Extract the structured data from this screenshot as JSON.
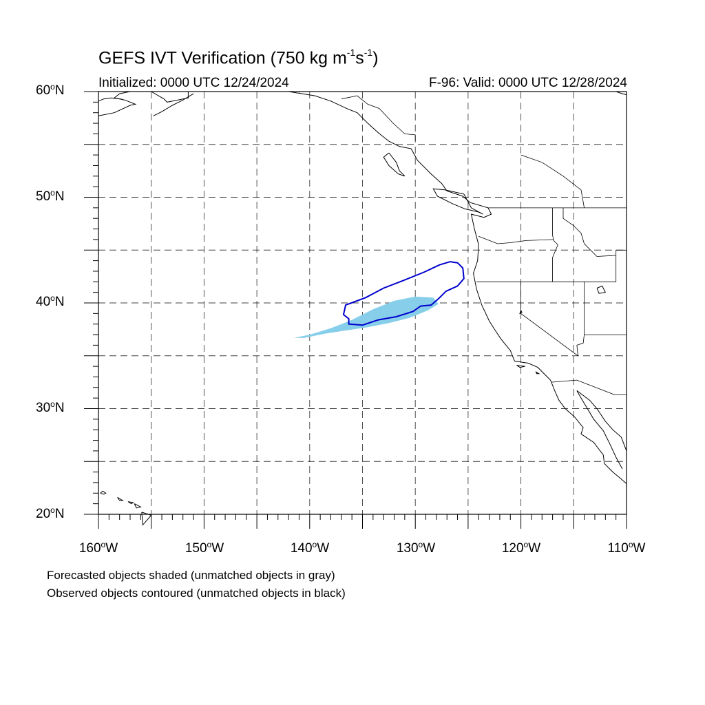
{
  "title": {
    "prefix": "GEFS IVT Verification (750 kg m",
    "exp1": "-1",
    "mid": "s",
    "exp2": "-1",
    "suffix": ")"
  },
  "initialized": "Initialized: 0000 UTC 12/24/2024",
  "valid": "F-96: Valid: 0000 UTC 12/28/2024",
  "lat_labels": [
    {
      "deg": "60",
      "hemi": "N"
    },
    {
      "deg": "50",
      "hemi": "N"
    },
    {
      "deg": "40",
      "hemi": "N"
    },
    {
      "deg": "30",
      "hemi": "N"
    },
    {
      "deg": "20",
      "hemi": "N"
    }
  ],
  "lon_labels": [
    {
      "deg": "160",
      "hemi": "W"
    },
    {
      "deg": "150",
      "hemi": "W"
    },
    {
      "deg": "140",
      "hemi": "W"
    },
    {
      "deg": "130",
      "hemi": "W"
    },
    {
      "deg": "120",
      "hemi": "W"
    },
    {
      "deg": "110",
      "hemi": "W"
    }
  ],
  "footnotes": [
    "Forecasted objects shaded (unmatched objects in gray)",
    "Observed objects contoured (unmatched objects in black)"
  ],
  "colors": {
    "forecast_fill": "#87ceeb",
    "observed_contour": "#0000cd",
    "coastline": "#000000",
    "grid": "#000000"
  },
  "map_extent": {
    "lon_min": -160,
    "lon_max": -110,
    "lat_min": 20,
    "lat_max": 60
  },
  "forecast_object_shape": [
    [
      -141.5,
      36.7
    ],
    [
      -140.0,
      37.0
    ],
    [
      -138.0,
      37.6
    ],
    [
      -136.0,
      38.4
    ],
    [
      -134.0,
      39.4
    ],
    [
      -132.0,
      40.2
    ],
    [
      -130.0,
      40.6
    ],
    [
      -128.3,
      40.5
    ],
    [
      -127.8,
      39.9
    ],
    [
      -128.8,
      39.3
    ],
    [
      -130.5,
      38.6
    ],
    [
      -132.5,
      38.1
    ],
    [
      -134.5,
      37.7
    ],
    [
      -136.5,
      37.4
    ],
    [
      -138.5,
      37.1
    ],
    [
      -140.5,
      36.7
    ]
  ],
  "observed_object_contour": [
    [
      -136.7,
      39.3
    ],
    [
      -136.6,
      39.8
    ],
    [
      -134.7,
      40.5
    ],
    [
      -133.0,
      41.4
    ],
    [
      -131.2,
      42.1
    ],
    [
      -129.2,
      42.9
    ],
    [
      -127.7,
      43.6
    ],
    [
      -126.7,
      43.9
    ],
    [
      -126.0,
      43.8
    ],
    [
      -125.5,
      43.3
    ],
    [
      -125.4,
      42.3
    ],
    [
      -126.0,
      41.6
    ],
    [
      -127.1,
      41.1
    ],
    [
      -127.8,
      40.4
    ],
    [
      -128.5,
      39.8
    ],
    [
      -129.5,
      39.7
    ],
    [
      -130.2,
      39.2
    ],
    [
      -131.8,
      38.7
    ],
    [
      -133.5,
      38.4
    ],
    [
      -135.0,
      37.9
    ],
    [
      -136.3,
      38.0
    ],
    [
      -136.3,
      38.5
    ],
    [
      -136.8,
      38.9
    ]
  ],
  "coastlines": [
    [
      [
        -160,
        57.7
      ],
      [
        -158.5,
        58.0
      ],
      [
        -157.0,
        58.7
      ],
      [
        -156.5,
        58.8
      ],
      [
        -157.5,
        59.2
      ],
      [
        -158.5,
        59.4
      ],
      [
        -158.0,
        59.8
      ],
      [
        -157.0,
        60.0
      ]
    ],
    [
      [
        -160,
        59.1
      ],
      [
        -159.5,
        59.3
      ],
      [
        -158.8,
        59.4
      ],
      [
        -157.9,
        59.3
      ],
      [
        -157.6,
        59.2
      ]
    ],
    [
      [
        -155.0,
        60.0
      ],
      [
        -153.8,
        59.3
      ],
      [
        -153.5,
        59.0
      ],
      [
        -151.5,
        59.4
      ],
      [
        -151.5,
        60.0
      ]
    ],
    [
      [
        -151.0,
        59.8
      ],
      [
        -152.0,
        59.2
      ],
      [
        -153.0,
        58.7
      ],
      [
        -154.0,
        58.1
      ],
      [
        -154.8,
        57.7
      ]
    ],
    [
      [
        -142.0,
        60.0
      ],
      [
        -139.5,
        59.6
      ],
      [
        -138.0,
        59.1
      ],
      [
        -136.5,
        58.4
      ],
      [
        -135.5,
        58.0
      ],
      [
        -134.5,
        57.0
      ],
      [
        -133.5,
        56.1
      ],
      [
        -132.5,
        55.3
      ],
      [
        -131.5,
        54.8
      ],
      [
        -130.4,
        54.6
      ],
      [
        -129.8,
        53.5
      ],
      [
        -128.5,
        52.2
      ],
      [
        -127.5,
        51.3
      ],
      [
        -127.0,
        50.6
      ],
      [
        -125.5,
        50.1
      ],
      [
        -124.8,
        49.5
      ],
      [
        -123.1,
        49.0
      ],
      [
        -122.8,
        48.4
      ],
      [
        -123.5,
        48.1
      ],
      [
        -124.7,
        48.4
      ],
      [
        -124.4,
        47.0
      ],
      [
        -124.0,
        45.5
      ],
      [
        -124.1,
        44.0
      ],
      [
        -124.5,
        42.8
      ],
      [
        -124.2,
        41.3
      ],
      [
        -123.7,
        39.8
      ],
      [
        -123.0,
        38.3
      ],
      [
        -122.5,
        37.5
      ],
      [
        -121.9,
        36.6
      ],
      [
        -121.0,
        35.5
      ],
      [
        -120.6,
        34.5
      ],
      [
        -119.3,
        34.3
      ],
      [
        -118.4,
        33.9
      ],
      [
        -117.2,
        32.7
      ],
      [
        -116.8,
        31.7
      ],
      [
        -116.4,
        30.8
      ],
      [
        -115.8,
        30.0
      ],
      [
        -114.9,
        29.2
      ],
      [
        -114.1,
        28.2
      ],
      [
        -114.3,
        27.6
      ],
      [
        -113.1,
        26.8
      ],
      [
        -112.2,
        25.6
      ],
      [
        -112.1,
        24.8
      ],
      [
        -111.3,
        24.0
      ],
      [
        -110.7,
        23.5
      ],
      [
        -110,
        22.9
      ]
    ],
    [
      [
        -110,
        26.0
      ],
      [
        -110.5,
        27.3
      ],
      [
        -111.3,
        28.0
      ],
      [
        -112.0,
        28.8
      ],
      [
        -112.8,
        30.0
      ],
      [
        -113.5,
        30.8
      ],
      [
        -114.7,
        31.7
      ],
      [
        -114.3,
        31.0
      ],
      [
        -113.1,
        29.0
      ],
      [
        -112.2,
        27.9
      ],
      [
        -111.6,
        26.7
      ],
      [
        -111.0,
        25.4
      ],
      [
        -110.4,
        24.3
      ]
    ],
    [
      [
        -125.4,
        50.3
      ],
      [
        -124.7,
        49.0
      ],
      [
        -123.6,
        48.4
      ],
      [
        -124.0,
        48.6
      ],
      [
        -125.3,
        48.9
      ],
      [
        -126.5,
        49.4
      ],
      [
        -127.9,
        50.1
      ],
      [
        -128.3,
        50.8
      ],
      [
        -127.2,
        50.7
      ],
      [
        -125.4,
        50.3
      ]
    ],
    [
      [
        -132.5,
        54.2
      ],
      [
        -131.8,
        53.3
      ],
      [
        -131.5,
        52.5
      ],
      [
        -131.0,
        52.0
      ],
      [
        -131.6,
        52.2
      ],
      [
        -132.5,
        53.0
      ],
      [
        -133.0,
        53.8
      ],
      [
        -132.5,
        54.2
      ]
    ],
    [
      [
        -159.6,
        22.2
      ],
      [
        -159.3,
        22.0
      ],
      [
        -159.5,
        21.9
      ],
      [
        -159.8,
        22.0
      ],
      [
        -159.6,
        22.2
      ]
    ],
    [
      [
        -158.2,
        21.6
      ],
      [
        -157.7,
        21.3
      ],
      [
        -158.0,
        21.3
      ],
      [
        -158.2,
        21.6
      ]
    ],
    [
      [
        -157.2,
        21.2
      ],
      [
        -156.7,
        21.1
      ],
      [
        -156.9,
        21.0
      ],
      [
        -157.2,
        21.2
      ]
    ],
    [
      [
        -156.6,
        21.0
      ],
      [
        -156.0,
        20.7
      ],
      [
        -156.4,
        20.6
      ],
      [
        -156.6,
        21.0
      ]
    ],
    [
      [
        -155.9,
        20.2
      ],
      [
        -155.0,
        19.9
      ],
      [
        -155.8,
        19.0
      ],
      [
        -155.9,
        20.2
      ]
    ],
    [
      [
        -120.4,
        34.1
      ],
      [
        -119.6,
        34.0
      ],
      [
        -120.1,
        33.9
      ],
      [
        -120.4,
        34.1
      ]
    ],
    [
      [
        -118.6,
        33.5
      ],
      [
        -118.3,
        33.3
      ],
      [
        -118.5,
        33.3
      ],
      [
        -118.6,
        33.5
      ]
    ],
    [
      [
        -111.0,
        60.0
      ],
      [
        -110.4,
        59.8
      ],
      [
        -110.0,
        59.7
      ]
    ]
  ],
  "borders": [
    [
      [
        -141.0,
        60.0
      ],
      [
        -141.0,
        59.9
      ]
    ],
    [
      [
        -137.0,
        59.3
      ],
      [
        -135.5,
        59.6
      ],
      [
        -134.5,
        58.8
      ],
      [
        -133.4,
        58.4
      ],
      [
        -132.1,
        57.0
      ],
      [
        -131.0,
        56.0
      ],
      [
        -130.0,
        55.9
      ],
      [
        -130.0,
        55.3
      ]
    ],
    [
      [
        -123.1,
        49.0
      ],
      [
        -110,
        49.0
      ]
    ],
    [
      [
        -124.2,
        42.0
      ],
      [
        -120,
        42.0
      ],
      [
        -111.0,
        42.0
      ],
      [
        -111.0,
        45.0
      ],
      [
        -110,
        45.0
      ]
    ],
    [
      [
        -117.0,
        49.0
      ],
      [
        -117.0,
        46.4
      ],
      [
        -116.9,
        45.9
      ],
      [
        -116.5,
        45.5
      ],
      [
        -117.0,
        44.3
      ],
      [
        -117.0,
        42.0
      ]
    ],
    [
      [
        -124.0,
        46.3
      ],
      [
        -122.2,
        45.6
      ],
      [
        -121.0,
        45.7
      ],
      [
        -119.5,
        45.9
      ],
      [
        -116.9,
        46.0
      ]
    ],
    [
      [
        -120.0,
        42.0
      ],
      [
        -120.0,
        39.0
      ],
      [
        -114.6,
        35.0
      ]
    ],
    [
      [
        -114.0,
        42.0
      ],
      [
        -114.0,
        37.0
      ],
      [
        -114.1,
        36.2
      ],
      [
        -114.7,
        36.0
      ],
      [
        -114.6,
        35.0
      ]
    ],
    [
      [
        -114.0,
        37.0
      ],
      [
        -110,
        37.0
      ]
    ],
    [
      [
        -117.1,
        32.5
      ],
      [
        -114.7,
        32.7
      ],
      [
        -111.1,
        31.3
      ],
      [
        -110,
        31.3
      ]
    ],
    [
      [
        -116.0,
        49.0
      ],
      [
        -116.0,
        48.0
      ],
      [
        -115.0,
        47.3
      ],
      [
        -114.3,
        46.6
      ],
      [
        -114.0,
        45.6
      ],
      [
        -112.8,
        44.4
      ],
      [
        -111.0,
        44.5
      ]
    ],
    [
      [
        -120.0,
        54.0
      ],
      [
        -118.0,
        53.3
      ],
      [
        -116.0,
        52.0
      ],
      [
        -114.3,
        50.7
      ],
      [
        -114.0,
        49.0
      ]
    ]
  ],
  "lakes": [
    [
      [
        -112.8,
        41.4
      ],
      [
        -112.3,
        41.6
      ],
      [
        -112.0,
        41.0
      ],
      [
        -112.6,
        40.9
      ],
      [
        -112.8,
        41.4
      ]
    ],
    [
      [
        -120.0,
        39.3
      ],
      [
        -119.9,
        39.1
      ],
      [
        -120.1,
        39.0
      ],
      [
        -120.0,
        39.3
      ]
    ]
  ]
}
